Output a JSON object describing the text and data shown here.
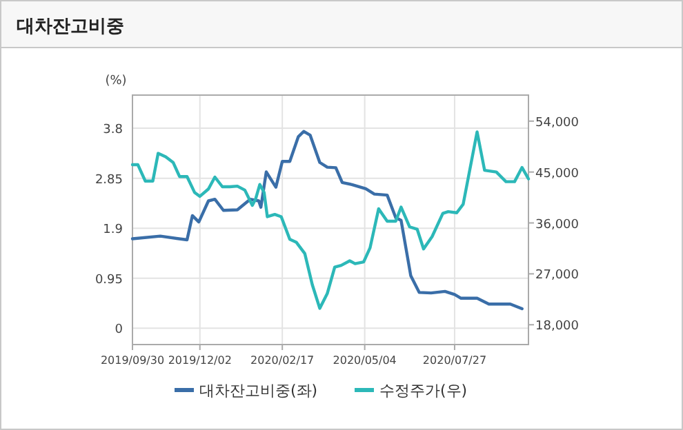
{
  "chart_data": {
    "type": "line",
    "title": "대차잔고비중",
    "ylabel": "(%)",
    "xlim": [
      "2019-09-30",
      "2020-10-04"
    ],
    "xticks": [
      {
        "value": "2019-09-30",
        "label": "2019/09/30"
      },
      {
        "value": "2019-12-02",
        "label": "2019/12/02"
      },
      {
        "value": "2020-02-17",
        "label": "2020/02/17"
      },
      {
        "value": "2020-05-04",
        "label": "2020/05/04"
      },
      {
        "value": "2020-07-27",
        "label": "2020/07/27"
      }
    ],
    "ylim": [
      -0.31,
      4.43
    ],
    "yticks": [
      0,
      0.95,
      1.9,
      2.85,
      3.8
    ],
    "y2lim": [
      14500,
      58600
    ],
    "y2ticks": [
      {
        "value": 18000,
        "label": "18,000"
      },
      {
        "value": 27000,
        "label": "27,000"
      },
      {
        "value": 36000,
        "label": "36,000"
      },
      {
        "value": 45000,
        "label": "45,000"
      },
      {
        "value": 54000,
        "label": "54,000"
      }
    ],
    "grid": true,
    "legend": "bottom",
    "series": [
      {
        "name": "대차잔고비중(좌)",
        "color": "#3a6ea8",
        "x": [
          "2019-09-30",
          "2019-10-26",
          "2019-11-20",
          "2019-11-25",
          "2019-12-01",
          "2019-12-10",
          "2019-12-16",
          "2019-12-24",
          "2020-01-06",
          "2020-01-18",
          "2020-01-26",
          "2020-01-28",
          "2020-02-02",
          "2020-02-11",
          "2020-02-17",
          "2020-02-24",
          "2020-03-03",
          "2020-03-08",
          "2020-03-14",
          "2020-03-23",
          "2020-03-30",
          "2020-04-07",
          "2020-04-13",
          "2020-04-22",
          "2020-05-05",
          "2020-05-13",
          "2020-05-25",
          "2020-06-02",
          "2020-06-07",
          "2020-06-16",
          "2020-06-24",
          "2020-07-05",
          "2020-07-18",
          "2020-07-27",
          "2020-08-02",
          "2020-08-17",
          "2020-08-28",
          "2020-09-17",
          "2020-09-28"
        ],
        "values": [
          1.7,
          1.75,
          1.68,
          2.14,
          2.02,
          2.42,
          2.45,
          2.24,
          2.25,
          2.45,
          2.42,
          2.3,
          2.97,
          2.68,
          3.17,
          3.17,
          3.64,
          3.74,
          3.67,
          3.15,
          3.06,
          3.05,
          2.77,
          2.73,
          2.65,
          2.55,
          2.53,
          2.1,
          2.05,
          1.0,
          0.68,
          0.67,
          0.7,
          0.64,
          0.57,
          0.57,
          0.46,
          0.46,
          0.37
        ]
      },
      {
        "name": "수정주가(우)",
        "color": "#2cb8b8",
        "axis": "y2",
        "x": [
          "2019-09-30",
          "2019-10-05",
          "2019-10-12",
          "2019-10-19",
          "2019-10-24",
          "2019-10-31",
          "2019-11-07",
          "2019-11-13",
          "2019-11-20",
          "2019-11-27",
          "2019-12-02",
          "2019-12-10",
          "2019-12-16",
          "2019-12-23",
          "2019-12-30",
          "2020-01-06",
          "2020-01-13",
          "2020-01-20",
          "2020-01-23",
          "2020-01-27",
          "2020-01-31",
          "2020-02-03",
          "2020-02-10",
          "2020-02-16",
          "2020-02-24",
          "2020-03-01",
          "2020-03-09",
          "2020-03-16",
          "2020-03-23",
          "2020-03-30",
          "2020-04-06",
          "2020-04-12",
          "2020-04-20",
          "2020-04-25",
          "2020-05-03",
          "2020-05-09",
          "2020-05-17",
          "2020-05-25",
          "2020-06-02",
          "2020-06-07",
          "2020-06-15",
          "2020-06-22",
          "2020-06-28",
          "2020-07-06",
          "2020-07-16",
          "2020-07-21",
          "2020-07-29",
          "2020-08-04",
          "2020-08-17",
          "2020-08-24",
          "2020-09-04",
          "2020-09-13",
          "2020-09-21",
          "2020-09-28",
          "2020-10-04"
        ],
        "values": [
          46300,
          46300,
          43400,
          43400,
          48300,
          47700,
          46700,
          44200,
          44200,
          41400,
          40700,
          42000,
          44100,
          42400,
          42400,
          42500,
          41800,
          39100,
          40200,
          42800,
          41400,
          37100,
          37500,
          37100,
          33100,
          32600,
          30600,
          25100,
          20900,
          23500,
          28200,
          28500,
          29300,
          28800,
          29100,
          31600,
          38500,
          36300,
          36300,
          38800,
          35300,
          34900,
          31400,
          33600,
          37700,
          38000,
          37800,
          39300,
          52100,
          45300,
          45000,
          43300,
          43300,
          45800,
          43800
        ]
      }
    ]
  }
}
